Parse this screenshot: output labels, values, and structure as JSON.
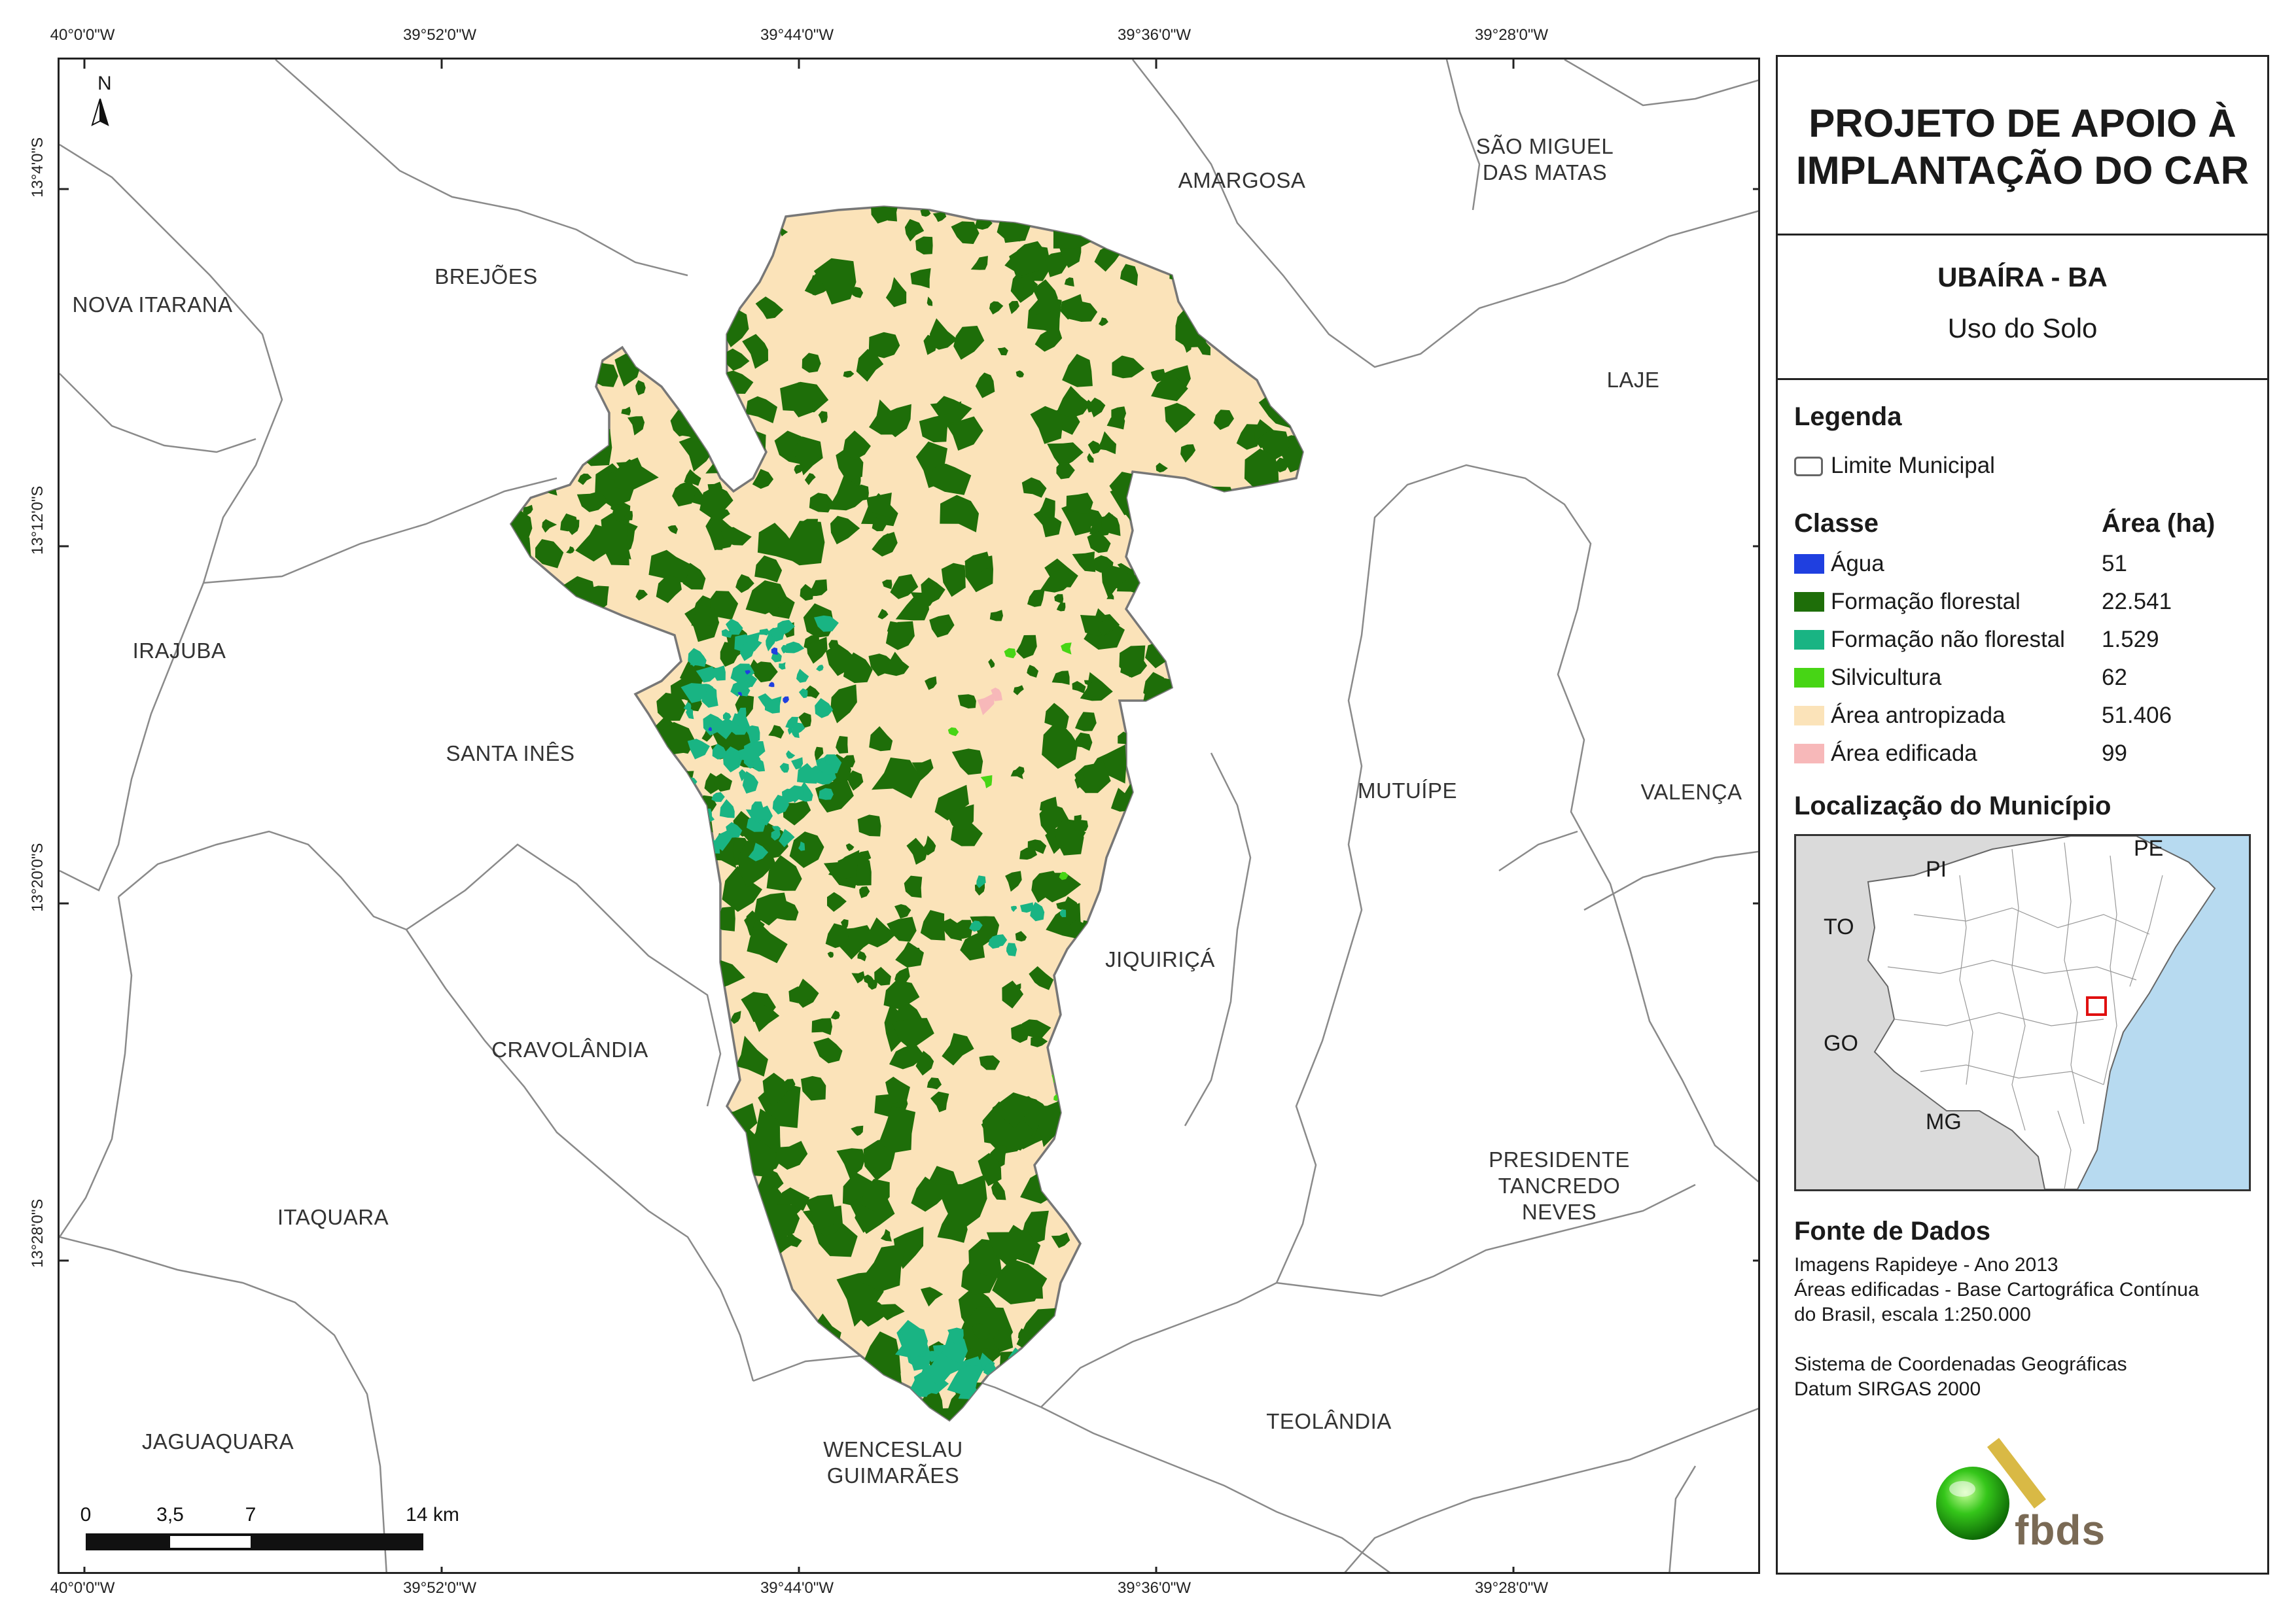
{
  "map": {
    "top_ticks": [
      "40°0'0\"W",
      "39°52'0\"W",
      "39°44'0\"W",
      "39°36'0\"W",
      "39°28'0\"W"
    ],
    "bottom_ticks": [
      "40°0'0\"W",
      "39°52'0\"W",
      "39°44'0\"W",
      "39°36'0\"W",
      "39°28'0\"W"
    ],
    "left_ticks": [
      "13°4'0\"S",
      "13°12'0\"S",
      "13°20'0\"S",
      "13°28'0\"S"
    ],
    "north_arrow": "N",
    "municipalities": [
      {
        "name": "AMARGOSA"
      },
      {
        "name": "SÃO MIGUEL\nDAS MATAS"
      },
      {
        "name": "BREJÕES"
      },
      {
        "name": "NOVA ITARANA"
      },
      {
        "name": "LAJE"
      },
      {
        "name": "IRAJUBA"
      },
      {
        "name": "SANTA INÊS"
      },
      {
        "name": "MUTUÍPE"
      },
      {
        "name": "VALENÇA"
      },
      {
        "name": "JIQUIRIÇÁ"
      },
      {
        "name": "CRAVOLÂNDIA"
      },
      {
        "name": "PRESIDENTE\nTANCREDO\nNEVES"
      },
      {
        "name": "ITAQUARA"
      },
      {
        "name": "TEOLÂNDIA"
      },
      {
        "name": "JAGUAQUARA"
      },
      {
        "name": "WENCESLAU\nGUIMARÃES"
      }
    ],
    "scale_bar": {
      "labels": [
        "0",
        "3,5",
        "7",
        "14 km"
      ]
    },
    "colors": {
      "agua": "#1f3fe0",
      "formacao_florestal": "#1e6e09",
      "formacao_nao_florestal": "#19b483",
      "silvicultura": "#47d515",
      "area_antropizada": "#fbe3b9",
      "area_edificada": "#f7b8b9",
      "limite": "#777777",
      "ocean": "#b7daf0",
      "land_grey": "#dadada",
      "locator_box": "#e01010"
    }
  },
  "panel": {
    "title": "PROJETO DE APOIO À IMPLANTAÇÃO DO CAR",
    "title_line1": "PROJETO DE APOIO À",
    "title_line2": "IMPLANTAÇÃO DO CAR",
    "municipality": "UBAÍRA - BA",
    "subtitle": "Uso do Solo",
    "legend_heading": "Legenda",
    "boundary_label": "Limite Municipal",
    "class_heading": "Classe",
    "area_heading": "Área (ha)",
    "classes": [
      {
        "name": "Água",
        "area": "51",
        "color": "#1f3fe0"
      },
      {
        "name": "Formação florestal",
        "area": "22.541",
        "color": "#1e6e09"
      },
      {
        "name": "Formação não florestal",
        "area": "1.529",
        "color": "#19b483"
      },
      {
        "name": "Silvicultura",
        "area": "62",
        "color": "#47d515"
      },
      {
        "name": "Área antropizada",
        "area": "51.406",
        "color": "#fbe3b9"
      },
      {
        "name": "Área edificada",
        "area": "99",
        "color": "#f7b8b9"
      }
    ],
    "location_heading": "Localização do Município",
    "locator_states": [
      "PI",
      "PE",
      "TO",
      "GO",
      "MG"
    ],
    "sources_heading": "Fonte de Dados",
    "sources": [
      "Imagens Rapideye - Ano 2013",
      "Áreas edificadas - Base Cartográfica Contínua",
      "do Brasil, escala 1:250.000",
      "",
      "Sistema de Coordenadas Geográficas",
      "Datum SIRGAS 2000"
    ],
    "logo_text": "fbds"
  }
}
